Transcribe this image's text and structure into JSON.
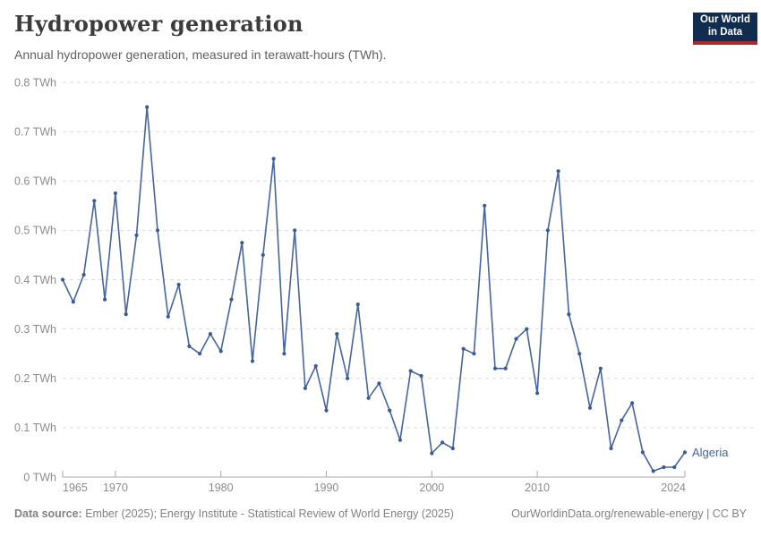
{
  "header": {
    "title": "Hydropower generation",
    "subtitle": "Annual hydropower generation, measured in terawatt-hours (TWh).",
    "logo": {
      "line1": "Our World",
      "line2": "in Data",
      "bg_color": "#102d50",
      "bar_color": "#aa282d"
    }
  },
  "chart_data": {
    "type": "line",
    "title": "Hydropower generation",
    "subtitle": "Annual hydropower generation, measured in terawatt-hours (TWh).",
    "entity_label": "Algeria",
    "x": [
      1965,
      1966,
      1967,
      1968,
      1969,
      1970,
      1971,
      1972,
      1973,
      1974,
      1975,
      1976,
      1977,
      1978,
      1979,
      1980,
      1981,
      1982,
      1983,
      1984,
      1985,
      1986,
      1987,
      1988,
      1989,
      1990,
      1991,
      1992,
      1993,
      1994,
      1995,
      1996,
      1997,
      1998,
      1999,
      2000,
      2001,
      2002,
      2003,
      2004,
      2005,
      2006,
      2007,
      2008,
      2009,
      2010,
      2011,
      2012,
      2013,
      2014,
      2015,
      2016,
      2017,
      2018,
      2019,
      2020,
      2021,
      2022,
      2023,
      2024
    ],
    "series": [
      {
        "name": "Algeria",
        "values": [
          0.4,
          0.355,
          0.41,
          0.56,
          0.36,
          0.575,
          0.33,
          0.49,
          0.75,
          0.5,
          0.325,
          0.39,
          0.265,
          0.25,
          0.29,
          0.255,
          0.36,
          0.475,
          0.235,
          0.45,
          0.645,
          0.25,
          0.5,
          0.18,
          0.225,
          0.135,
          0.29,
          0.2,
          0.35,
          0.16,
          0.19,
          0.135,
          0.075,
          0.215,
          0.205,
          0.048,
          0.07,
          0.058,
          0.26,
          0.25,
          0.55,
          0.22,
          0.22,
          0.28,
          0.3,
          0.17,
          0.5,
          0.62,
          0.33,
          0.25,
          0.14,
          0.22,
          0.058,
          0.115,
          0.15,
          0.05,
          0.012,
          0.02,
          0.02,
          0.05
        ]
      }
    ],
    "xlim": [
      1965,
      2024
    ],
    "ylim": [
      0,
      0.8
    ],
    "yticks": [
      0,
      0.1,
      0.2,
      0.3,
      0.4,
      0.5,
      0.6,
      0.7,
      0.8
    ],
    "ytick_labels": [
      "0 TWh",
      "0.1 TWh",
      "0.2 TWh",
      "0.3 TWh",
      "0.4 TWh",
      "0.5 TWh",
      "0.6 TWh",
      "0.7 TWh",
      "0.8 TWh"
    ],
    "xticks": [
      1965,
      1970,
      1980,
      1990,
      2000,
      2010,
      2024
    ],
    "xtick_labels": [
      "1965",
      "1970",
      "1980",
      "1990",
      "2000",
      "2010",
      "2024"
    ],
    "grid": "horizontal-dashed",
    "legend_position": "inline-end-label",
    "line_color": "#4665a0",
    "point_color": "#3d5a91",
    "grid_color": "#dedede",
    "axis_color": "#a8a8a8",
    "tick_label_color": "#8c8c8c"
  },
  "footer": {
    "source_label": "Data source:",
    "source_text": " Ember (2025); Energy Institute - Statistical Review of World Energy (2025)",
    "url_text": "OurWorldinData.org/renewable-energy | CC BY"
  }
}
